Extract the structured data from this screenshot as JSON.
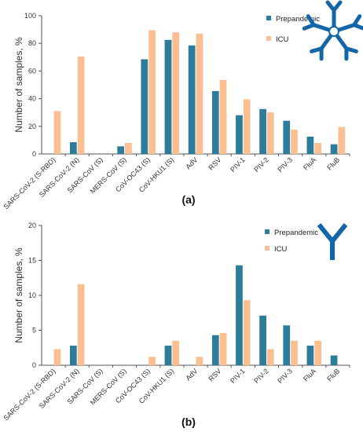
{
  "colors": {
    "prepandemic": "#2b7d99",
    "icu": "#fbbf91",
    "icon": "#1366a8",
    "axis": "#555555"
  },
  "chart_data": [
    {
      "type": "bar",
      "panel_label": "(a)",
      "icon": "igm-pentamer-antibody-icon",
      "title": "",
      "xlabel": "",
      "ylabel": "Number of samples, %",
      "ylim": [
        0,
        100
      ],
      "yticks": [
        "0",
        "20",
        "40",
        "60",
        "80",
        "100"
      ],
      "grid": false,
      "legend_position": "top-right",
      "categories": [
        "SARS-CoV-2 (S-RBD)",
        "SARS-CoV-2 (N)",
        "SARS-CoV (S)",
        "MERS-CoV (S)",
        "CoV-OC43 (S)",
        "CoV-HKU1 (S)",
        "AdV",
        "RSV",
        "PIV-1",
        "PIV-2",
        "PIV-3",
        "FluA",
        "FluB"
      ],
      "series": [
        {
          "name": "Prepandemic",
          "values": [
            0,
            8.5,
            0,
            5.5,
            68.5,
            82.5,
            78.5,
            45.5,
            28,
            32.5,
            24,
            12.5,
            7
          ]
        },
        {
          "name": "ICU",
          "values": [
            31,
            70.5,
            0,
            8,
            89.5,
            88,
            87,
            53.5,
            39.5,
            30,
            17.5,
            8,
            19.5
          ]
        }
      ]
    },
    {
      "type": "bar",
      "panel_label": "(b)",
      "icon": "igg-antibody-icon",
      "title": "",
      "xlabel": "",
      "ylabel": "Number of samples, %",
      "ylim": [
        0,
        20
      ],
      "yticks": [
        "0",
        "5",
        "10",
        "15",
        "20"
      ],
      "grid": false,
      "legend_position": "top-right",
      "categories": [
        "SARS-CoV-2 (S-RBD)",
        "SARS-CoV-2 (N)",
        "SARS-CoV (S)",
        "MERS-CoV (S)",
        "CoV-OC43 (S)",
        "CoV-HKU1 (S)",
        "AdV",
        "RSV",
        "PIV-1",
        "PIV-2",
        "PIV-3",
        "FluA",
        "FluB"
      ],
      "series": [
        {
          "name": "Prepandemic",
          "values": [
            0,
            2.8,
            0,
            0,
            0,
            2.8,
            0,
            4.3,
            14.3,
            7.1,
            5.7,
            2.8,
            1.4
          ]
        },
        {
          "name": "ICU",
          "values": [
            2.3,
            11.6,
            0,
            0,
            1.2,
            3.5,
            1.2,
            4.6,
            9.3,
            2.3,
            3.5,
            3.5,
            0
          ]
        }
      ]
    }
  ]
}
